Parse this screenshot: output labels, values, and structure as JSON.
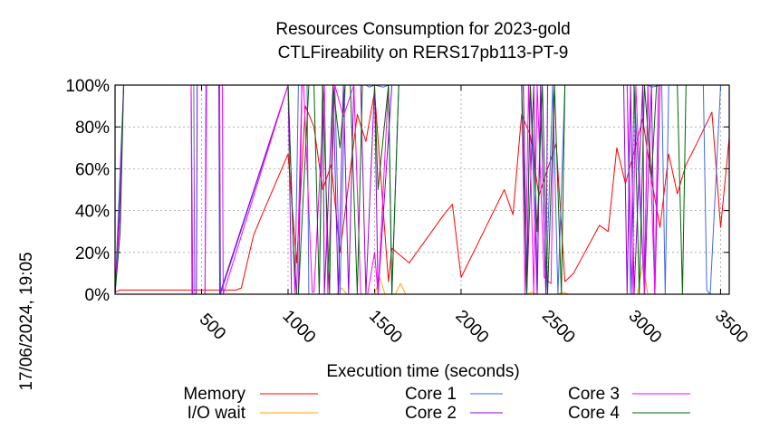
{
  "chart_data": {
    "type": "line",
    "title_line1": "Resources Consumption for 2023-gold",
    "title_line2": "CTLFireability on RERS17pb113-PT-9",
    "xlabel": "Execution time (seconds)",
    "ylabel": "",
    "side_label": "17/06/2024, 19:05",
    "xlim": [
      0,
      3550
    ],
    "ylim": [
      0,
      100
    ],
    "x_ticks": [
      {
        "value": 500,
        "label": "500"
      },
      {
        "value": 1000,
        "label": "1000"
      },
      {
        "value": 1500,
        "label": "1500"
      },
      {
        "value": 2000,
        "label": "2000"
      },
      {
        "value": 2500,
        "label": "2500"
      },
      {
        "value": 3000,
        "label": "3000"
      },
      {
        "value": 3500,
        "label": "3500"
      }
    ],
    "y_ticks": [
      {
        "value": 0,
        "label": "0%"
      },
      {
        "value": 20,
        "label": "20%"
      },
      {
        "value": 40,
        "label": "40%"
      },
      {
        "value": 60,
        "label": "60%"
      },
      {
        "value": 80,
        "label": "80%"
      },
      {
        "value": 100,
        "label": "100%"
      }
    ],
    "grid": true,
    "legend_position": "bottom",
    "series": [
      {
        "name": "Memory",
        "color": "#ff0000",
        "x": [
          0,
          30,
          200,
          400,
          600,
          700,
          730,
          800,
          850,
          1000,
          1050,
          1100,
          1150,
          1200,
          1250,
          1300,
          1400,
          1450,
          1500,
          1580,
          1600,
          1700,
          1900,
          1950,
          2000,
          2250,
          2300,
          2350,
          2400,
          2450,
          2500,
          2550,
          2600,
          2650,
          2800,
          2850,
          2900,
          2950,
          3000,
          3050,
          3100,
          3150,
          3200,
          3250,
          3300,
          3350,
          3450,
          3500,
          3550
        ],
        "y": [
          1,
          2,
          2,
          2,
          2,
          2,
          3,
          28,
          38,
          67,
          15,
          90,
          80,
          50,
          62,
          20,
          86,
          73,
          97,
          6,
          22,
          15,
          38,
          43,
          8,
          50,
          38,
          86,
          76,
          47,
          60,
          72,
          6,
          10,
          33,
          30,
          70,
          53,
          68,
          84,
          55,
          32,
          67,
          48,
          62,
          70,
          87,
          32,
          75
        ]
      },
      {
        "name": "I/O wait",
        "color": "#ffa500",
        "x": [
          0,
          1280,
          1310,
          1340,
          1500,
          1530,
          1560,
          1620,
          1650,
          1680,
          2380,
          2410,
          2440,
          2560,
          2590,
          2620,
          3020,
          3050,
          3080,
          3550
        ],
        "y": [
          0,
          0,
          3,
          0,
          0,
          8,
          0,
          0,
          5,
          0,
          0,
          1,
          0,
          0,
          1,
          0,
          0,
          15,
          0,
          0
        ]
      },
      {
        "name": "Core 1",
        "color": "#4169e1",
        "x": [
          0,
          30,
          50,
          455,
          460,
          520,
          525,
          605,
          610,
          1000,
          1040,
          1060,
          1110,
          1120,
          1180,
          1200,
          1270,
          1300,
          1330,
          1380,
          1450,
          1470,
          1500,
          1550,
          1580,
          1600,
          1640,
          1660,
          2360,
          2380,
          2400,
          2440,
          2460,
          2490,
          2530,
          2560,
          2600,
          2960,
          2980,
          3000,
          3060,
          3080,
          3100,
          3160,
          3180,
          3200,
          3400,
          3420,
          3440,
          3500,
          3550
        ],
        "y": [
          0,
          60,
          100,
          100,
          0,
          0,
          100,
          100,
          0,
          100,
          0,
          100,
          100,
          0,
          0,
          100,
          100,
          0,
          100,
          100,
          100,
          99,
          100,
          99,
          100,
          0,
          100,
          100,
          100,
          8,
          100,
          0,
          100,
          0,
          100,
          0,
          100,
          100,
          0,
          100,
          0,
          100,
          99,
          100,
          0,
          100,
          100,
          2,
          0,
          100,
          100
        ]
      },
      {
        "name": "Core 2",
        "color": "#9400d3",
        "x": [
          0,
          30,
          50,
          440,
          445,
          470,
          475,
          600,
          605,
          1000,
          1020,
          1060,
          1080,
          1200,
          1210,
          1260,
          1290,
          1320,
          1350,
          1380,
          1420,
          1450,
          1500,
          1520,
          1600,
          1620,
          2360,
          2380,
          2420,
          2440,
          2460,
          2490,
          2500,
          2520,
          2940,
          2960,
          2980,
          3000,
          3050,
          3060,
          3100,
          3120,
          3150,
          3200,
          3550
        ],
        "y": [
          0,
          50,
          100,
          100,
          0,
          0,
          100,
          100,
          0,
          100,
          0,
          0,
          100,
          100,
          0,
          100,
          0,
          100,
          0,
          100,
          100,
          0,
          100,
          0,
          100,
          100,
          100,
          0,
          100,
          0,
          100,
          0,
          100,
          100,
          100,
          0,
          100,
          0,
          100,
          0,
          100,
          0,
          100,
          100,
          100
        ]
      },
      {
        "name": "Core 3",
        "color": "#ff00ff",
        "x": [
          0,
          30,
          50,
          440,
          450,
          520,
          530,
          620,
          625,
          1000,
          1040,
          1050,
          1080,
          1090,
          1140,
          1150,
          1210,
          1230,
          1270,
          1320,
          1380,
          1420,
          1460,
          1500,
          1520,
          1580,
          1600,
          2350,
          2370,
          2390,
          2420,
          2440,
          2480,
          2520,
          2540,
          2960,
          2990,
          3010,
          3060,
          3080,
          3120,
          3140,
          3200,
          3550
        ],
        "y": [
          0,
          40,
          100,
          100,
          0,
          0,
          100,
          100,
          0,
          100,
          0,
          0,
          100,
          100,
          1,
          1,
          100,
          0,
          100,
          85,
          100,
          0,
          0,
          20,
          0,
          100,
          100,
          100,
          0,
          100,
          0,
          100,
          8,
          5,
          100,
          100,
          0,
          100,
          0,
          100,
          0,
          100,
          100,
          100
        ]
      },
      {
        "name": "Core 4",
        "color": "#006400",
        "x": [
          0,
          30,
          50,
          1000,
          1030,
          1050,
          1060,
          1120,
          1150,
          1180,
          1200,
          1240,
          1260,
          1300,
          1330,
          1360,
          1400,
          1430,
          1460,
          1500,
          1520,
          1580,
          1600,
          1640,
          1660,
          2350,
          2380,
          2400,
          2440,
          2470,
          2500,
          2540,
          2580,
          2600,
          3000,
          3030,
          3060,
          3100,
          3130,
          3150,
          3250,
          3280,
          3300,
          3550
        ],
        "y": [
          0,
          30,
          100,
          100,
          25,
          0,
          0,
          100,
          100,
          0,
          100,
          0,
          100,
          70,
          100,
          100,
          0,
          100,
          100,
          100,
          50,
          100,
          0,
          100,
          100,
          100,
          0,
          100,
          30,
          100,
          0,
          100,
          0,
          100,
          100,
          0,
          100,
          55,
          100,
          100,
          100,
          0,
          100,
          100
        ]
      }
    ]
  }
}
